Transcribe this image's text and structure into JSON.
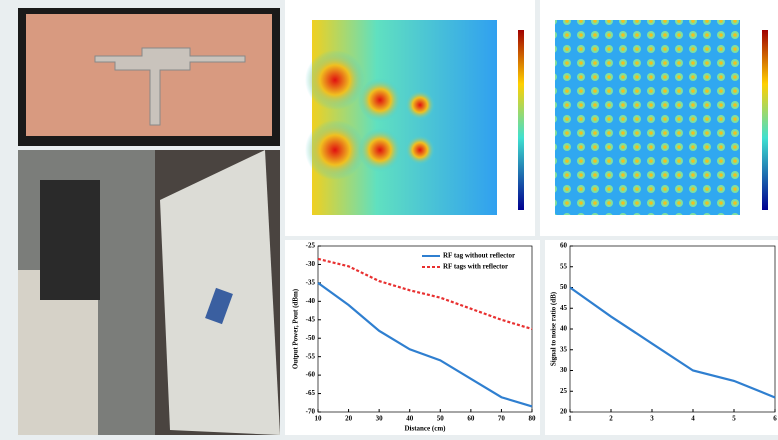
{
  "chart_data": [
    {
      "type": "line",
      "y_label": "Output Power, Pout (dBm)",
      "x_label": "Distance (cm)",
      "x": [
        10,
        20,
        30,
        40,
        50,
        60,
        70,
        80
      ],
      "series": [
        {
          "name": "RF tag without reflector",
          "color": "#2f7fd0",
          "dashed": false,
          "values": [
            -35,
            -41,
            -48,
            -53,
            -56,
            -61,
            -66,
            -68.5
          ]
        },
        {
          "name": "RF tags with reflector",
          "color": "#e83030",
          "dashed": true,
          "values": [
            -28.5,
            -30.5,
            -34.5,
            -37,
            -39,
            -42,
            -45,
            -47.5
          ]
        }
      ],
      "xlim": [
        10,
        80
      ],
      "xticks": [
        10,
        20,
        30,
        40,
        50,
        60,
        70,
        80
      ],
      "ylim": [
        -70,
        -25
      ],
      "yticks": [
        -25,
        -30,
        -35,
        -40,
        -45,
        -50,
        -55,
        -60,
        -65,
        -70
      ],
      "legend": "top-right"
    },
    {
      "type": "line",
      "y_label": "Signal to noise ratio (dB)",
      "x": [
        1,
        2,
        3,
        4,
        5,
        6
      ],
      "series": [
        {
          "color": "#2f7fd0",
          "dashed": false,
          "values": [
            50,
            43,
            36.5,
            30,
            27.5,
            23.5
          ]
        }
      ],
      "xlim": [
        1,
        6
      ],
      "xticks": [
        1,
        2,
        3,
        4,
        5,
        6
      ],
      "ylim": [
        20,
        60
      ],
      "yticks": [
        20,
        25,
        30,
        35,
        40,
        45,
        50,
        55,
        60
      ]
    }
  ]
}
